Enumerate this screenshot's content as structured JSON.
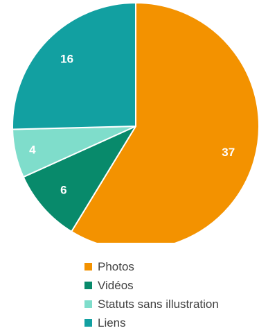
{
  "chart_data": {
    "type": "pie",
    "categories": [
      "Photos",
      "Vidéos",
      "Statuts sans illustration",
      "Liens"
    ],
    "values": [
      37,
      6,
      4,
      16
    ],
    "colors": [
      "#F39200",
      "#088A6B",
      "#7FDDCB",
      "#12A0A1"
    ],
    "data_labels": [
      "37",
      "6",
      "4",
      "16"
    ],
    "start_angle_deg": 0,
    "direction": "clockwise",
    "legend": "bottom",
    "title": ""
  }
}
